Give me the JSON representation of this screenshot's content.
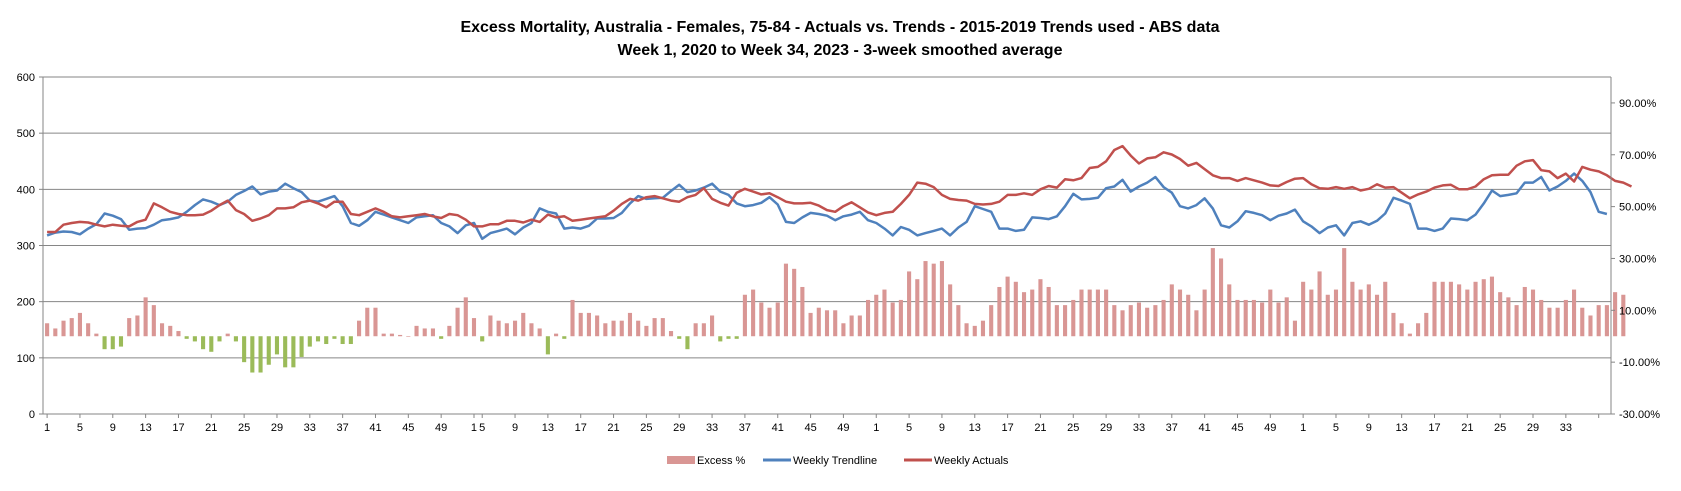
{
  "chart_data": {
    "type": "bar+line",
    "title": "Excess Mortality, Australia - Females, 75-84 - Actuals vs. Trends - 2015-2019 Trends used - ABS data",
    "subtitle": "Week 1, 2020 to Week 34, 2023 - 3-week smoothed average",
    "x_tick_labels": [
      "1",
      "5",
      "9",
      "13",
      "17",
      "21",
      "25",
      "29",
      "33",
      "37",
      "41",
      "45",
      "49",
      "1",
      "5",
      "9",
      "13",
      "17",
      "21",
      "25",
      "29",
      "33",
      "37",
      "41",
      "45",
      "49",
      "1",
      "5",
      "9",
      "13",
      "17",
      "21",
      "25",
      "29",
      "33",
      "37",
      "41",
      "45",
      "49",
      "1",
      "5",
      "9",
      "13",
      "17",
      "21",
      "25",
      "29",
      "33"
    ],
    "y_left": {
      "ylim": [
        0,
        600
      ],
      "ticks": [
        "0",
        "100",
        "200",
        "300",
        "400",
        "500",
        "600"
      ]
    },
    "y_right": {
      "ylim": [
        -0.3,
        1.0
      ],
      "ticks": [
        "-30.00%",
        "-10.00%",
        "10.00%",
        "30.00%",
        "50.00%",
        "70.00%",
        "90.00%"
      ]
    },
    "grid": "horizontal at left-axis major ticks",
    "legend_position": "bottom",
    "legend": [
      {
        "name": "Excess %",
        "color": "#d99694",
        "type": "bar"
      },
      {
        "name": "Weekly Trendline",
        "color": "#4f81bd",
        "type": "line"
      },
      {
        "name": "Weekly Actuals",
        "color": "#c0504d",
        "type": "line"
      }
    ],
    "colors": {
      "bar_positive": "#d99694",
      "bar_negative": "#9bbb59",
      "trendline": "#4f81bd",
      "actuals": "#c0504d"
    },
    "series": [
      {
        "name": "Weekly Trendline",
        "axis": "left",
        "values": [
          318,
          323,
          325,
          324,
          320,
          330,
          338,
          357,
          353,
          347,
          328,
          330,
          331,
          337,
          345,
          347,
          350,
          360,
          372,
          382,
          378,
          372,
          378,
          390,
          397,
          405,
          391,
          396,
          398,
          410,
          402,
          395,
          380,
          378,
          383,
          388,
          370,
          340,
          335,
          345,
          360,
          355,
          350,
          345,
          340,
          350,
          352,
          354,
          340,
          334,
          322,
          336,
          340,
          312,
          322,
          326,
          330,
          320,
          332,
          340,
          366,
          360,
          357,
          330,
          332,
          330,
          335,
          348,
          348,
          349,
          358,
          375,
          388,
          383,
          384,
          385,
          397,
          408,
          395,
          398,
          403,
          410,
          396,
          390,
          375,
          370,
          372,
          376,
          386,
          373,
          342,
          340,
          350,
          358,
          356,
          353,
          345,
          352,
          355,
          360,
          345,
          340,
          330,
          318,
          333,
          328,
          318,
          322,
          326,
          330,
          318,
          332,
          342,
          370,
          365,
          360,
          330,
          330,
          326,
          328,
          350,
          349,
          347,
          352,
          370,
          392,
          382,
          383,
          385,
          402,
          405,
          417,
          396,
          405,
          412,
          422,
          404,
          394,
          370,
          366,
          372,
          384,
          366,
          336,
          332,
          343,
          361,
          358,
          354,
          345,
          353,
          357,
          364,
          343,
          334,
          322,
          332,
          336,
          318,
          340,
          343,
          337,
          344,
          357,
          385,
          380,
          374,
          330,
          330,
          326,
          330,
          348,
          347,
          345,
          355,
          375,
          398,
          388,
          390,
          393,
          412,
          412,
          422,
          398,
          405,
          415,
          428,
          415,
          395,
          360,
          356
        ]
      },
      {
        "name": "Weekly Actuals",
        "axis": "left",
        "values": [
          324,
          324,
          337,
          340,
          342,
          341,
          337,
          334,
          337,
          335,
          334,
          342,
          346,
          375,
          368,
          360,
          356,
          354,
          354,
          355,
          362,
          372,
          380,
          363,
          356,
          344,
          348,
          354,
          366,
          366,
          368,
          377,
          380,
          375,
          368,
          378,
          378,
          356,
          354,
          360,
          366,
          360,
          352,
          350,
          352,
          354,
          356,
          352,
          349,
          356,
          354,
          346,
          334,
          334,
          338,
          338,
          344,
          344,
          341,
          346,
          342,
          355,
          350,
          352,
          344,
          346,
          348,
          350,
          352,
          362,
          374,
          383,
          380,
          386,
          388,
          384,
          380,
          378,
          386,
          390,
          402,
          383,
          376,
          371,
          394,
          401,
          396,
          391,
          393,
          386,
          378,
          375,
          375,
          376,
          371,
          363,
          360,
          370,
          377,
          368,
          359,
          354,
          358,
          360,
          374,
          390,
          412,
          410,
          404,
          390,
          383,
          381,
          380,
          374,
          373,
          374,
          378,
          390,
          390,
          393,
          390,
          400,
          406,
          403,
          418,
          416,
          420,
          438,
          440,
          450,
          470,
          477,
          460,
          446,
          455,
          457,
          466,
          462,
          454,
          442,
          447,
          436,
          425,
          420,
          420,
          415,
          420,
          416,
          412,
          407,
          406,
          413,
          419,
          420,
          409,
          402,
          401,
          404,
          401,
          404,
          398,
          401,
          409,
          403,
          404,
          394,
          384,
          391,
          396,
          403,
          407,
          408,
          400,
          400,
          405,
          418,
          425,
          426,
          426,
          442,
          450,
          452,
          434,
          432,
          420,
          428,
          414,
          440,
          435,
          432,
          425,
          415,
          412,
          405
        ]
      },
      {
        "name": "Excess %",
        "axis": "right",
        "type": "bar",
        "values": [
          0.05,
          0.03,
          0.06,
          0.07,
          0.09,
          0.05,
          0.01,
          -0.05,
          -0.05,
          -0.04,
          0.07,
          0.08,
          0.15,
          0.12,
          0.05,
          0.04,
          0.02,
          -0.01,
          -0.02,
          -0.05,
          -0.06,
          -0.02,
          0.01,
          -0.02,
          -0.1,
          -0.14,
          -0.14,
          -0.11,
          -0.07,
          -0.12,
          -0.12,
          -0.08,
          -0.04,
          -0.02,
          -0.03,
          -0.01,
          -0.03,
          -0.03,
          0.06,
          0.11,
          0.11,
          0.01,
          0.01,
          0.005,
          0.0,
          0.04,
          0.03,
          0.03,
          -0.01,
          0.04,
          0.11,
          0.15,
          0.07,
          -0.02,
          0.08,
          0.06,
          0.05,
          0.06,
          0.09,
          0.05,
          0.03,
          -0.07,
          0.01,
          -0.01,
          0.14,
          0.09,
          0.09,
          0.08,
          0.05,
          0.06,
          0.06,
          0.09,
          0.06,
          0.04,
          0.07,
          0.07,
          0.02,
          -0.01,
          -0.05,
          0.05,
          0.05,
          0.08,
          -0.02,
          -0.01,
          -0.01,
          0.16,
          0.18,
          0.13,
          0.11,
          0.13,
          0.28,
          0.26,
          0.19,
          0.09,
          0.11,
          0.1,
          0.1,
          0.05,
          0.08,
          0.08,
          0.14,
          0.16,
          0.18,
          0.13,
          0.14,
          0.25,
          0.22,
          0.29,
          0.28,
          0.29,
          0.2,
          0.12,
          0.05,
          0.04,
          0.06,
          0.12,
          0.19,
          0.23,
          0.21,
          0.17,
          0.18,
          0.22,
          0.19,
          0.12,
          0.12,
          0.14,
          0.18,
          0.18,
          0.18,
          0.18,
          0.12,
          0.1,
          0.12,
          0.13,
          0.11,
          0.12,
          0.14,
          0.2,
          0.18,
          0.16,
          0.1,
          0.18,
          0.34,
          0.3,
          0.2,
          0.14,
          0.14,
          0.14,
          0.13,
          0.18,
          0.13,
          0.15,
          0.06,
          0.21,
          0.18,
          0.25,
          0.16,
          0.18,
          0.34,
          0.21,
          0.18,
          0.2,
          0.16,
          0.21,
          0.09,
          0.05,
          0.01,
          0.05,
          0.09,
          0.21,
          0.21,
          0.21,
          0.2,
          0.18,
          0.21,
          0.22,
          0.23,
          0.17,
          0.15,
          0.12,
          0.19,
          0.18,
          0.14,
          0.11,
          0.11,
          0.14,
          0.18,
          0.11,
          0.08,
          0.12,
          0.12,
          0.17,
          0.16
        ]
      }
    ]
  }
}
